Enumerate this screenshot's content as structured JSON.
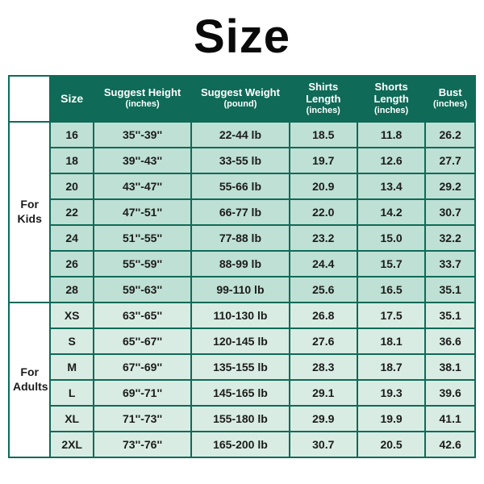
{
  "title": "Size",
  "colors": {
    "header_bg": "#0f6a57",
    "header_fg": "#ffffff",
    "border": "#0f6a57",
    "row_kids": "#bfe0d4",
    "row_adults": "#d8ece3"
  },
  "columns": [
    {
      "key": "size",
      "main": "Size",
      "sub": ""
    },
    {
      "key": "height",
      "main": "Suggest Height",
      "sub": "(inches)"
    },
    {
      "key": "weight",
      "main": "Suggest Weight",
      "sub": "(pound)"
    },
    {
      "key": "shirts",
      "main": "Shirts Length",
      "sub": "(inches)"
    },
    {
      "key": "shorts",
      "main": "Shorts Length",
      "sub": "(inches)"
    },
    {
      "key": "bust",
      "main": "Bust",
      "sub": "(inches)"
    }
  ],
  "groups": [
    {
      "label": "For\nKids",
      "zone": "a",
      "rows": [
        {
          "size": "16",
          "height": "35''-39''",
          "weight": "22-44 lb",
          "shirts": "18.5",
          "shorts": "11.8",
          "bust": "26.2"
        },
        {
          "size": "18",
          "height": "39''-43''",
          "weight": "33-55 lb",
          "shirts": "19.7",
          "shorts": "12.6",
          "bust": "27.7"
        },
        {
          "size": "20",
          "height": "43''-47''",
          "weight": "55-66 lb",
          "shirts": "20.9",
          "shorts": "13.4",
          "bust": "29.2"
        },
        {
          "size": "22",
          "height": "47''-51''",
          "weight": "66-77 lb",
          "shirts": "22.0",
          "shorts": "14.2",
          "bust": "30.7"
        },
        {
          "size": "24",
          "height": "51''-55''",
          "weight": "77-88 lb",
          "shirts": "23.2",
          "shorts": "15.0",
          "bust": "32.2"
        },
        {
          "size": "26",
          "height": "55''-59''",
          "weight": "88-99 lb",
          "shirts": "24.4",
          "shorts": "15.7",
          "bust": "33.7"
        },
        {
          "size": "28",
          "height": "59''-63''",
          "weight": "99-110 lb",
          "shirts": "25.6",
          "shorts": "16.5",
          "bust": "35.1"
        }
      ]
    },
    {
      "label": "For\nAdults",
      "zone": "b",
      "rows": [
        {
          "size": "XS",
          "height": "63''-65''",
          "weight": "110-130 lb",
          "shirts": "26.8",
          "shorts": "17.5",
          "bust": "35.1"
        },
        {
          "size": "S",
          "height": "65''-67''",
          "weight": "120-145 lb",
          "shirts": "27.6",
          "shorts": "18.1",
          "bust": "36.6"
        },
        {
          "size": "M",
          "height": "67''-69''",
          "weight": "135-155 lb",
          "shirts": "28.3",
          "shorts": "18.7",
          "bust": "38.1"
        },
        {
          "size": "L",
          "height": "69''-71''",
          "weight": "145-165 lb",
          "shirts": "29.1",
          "shorts": "19.3",
          "bust": "39.6"
        },
        {
          "size": "XL",
          "height": "71''-73''",
          "weight": "155-180 lb",
          "shirts": "29.9",
          "shorts": "19.9",
          "bust": "41.1"
        },
        {
          "size": "2XL",
          "height": "73''-76''",
          "weight": "165-200 lb",
          "shirts": "30.7",
          "shorts": "20.5",
          "bust": "42.6"
        }
      ]
    }
  ]
}
